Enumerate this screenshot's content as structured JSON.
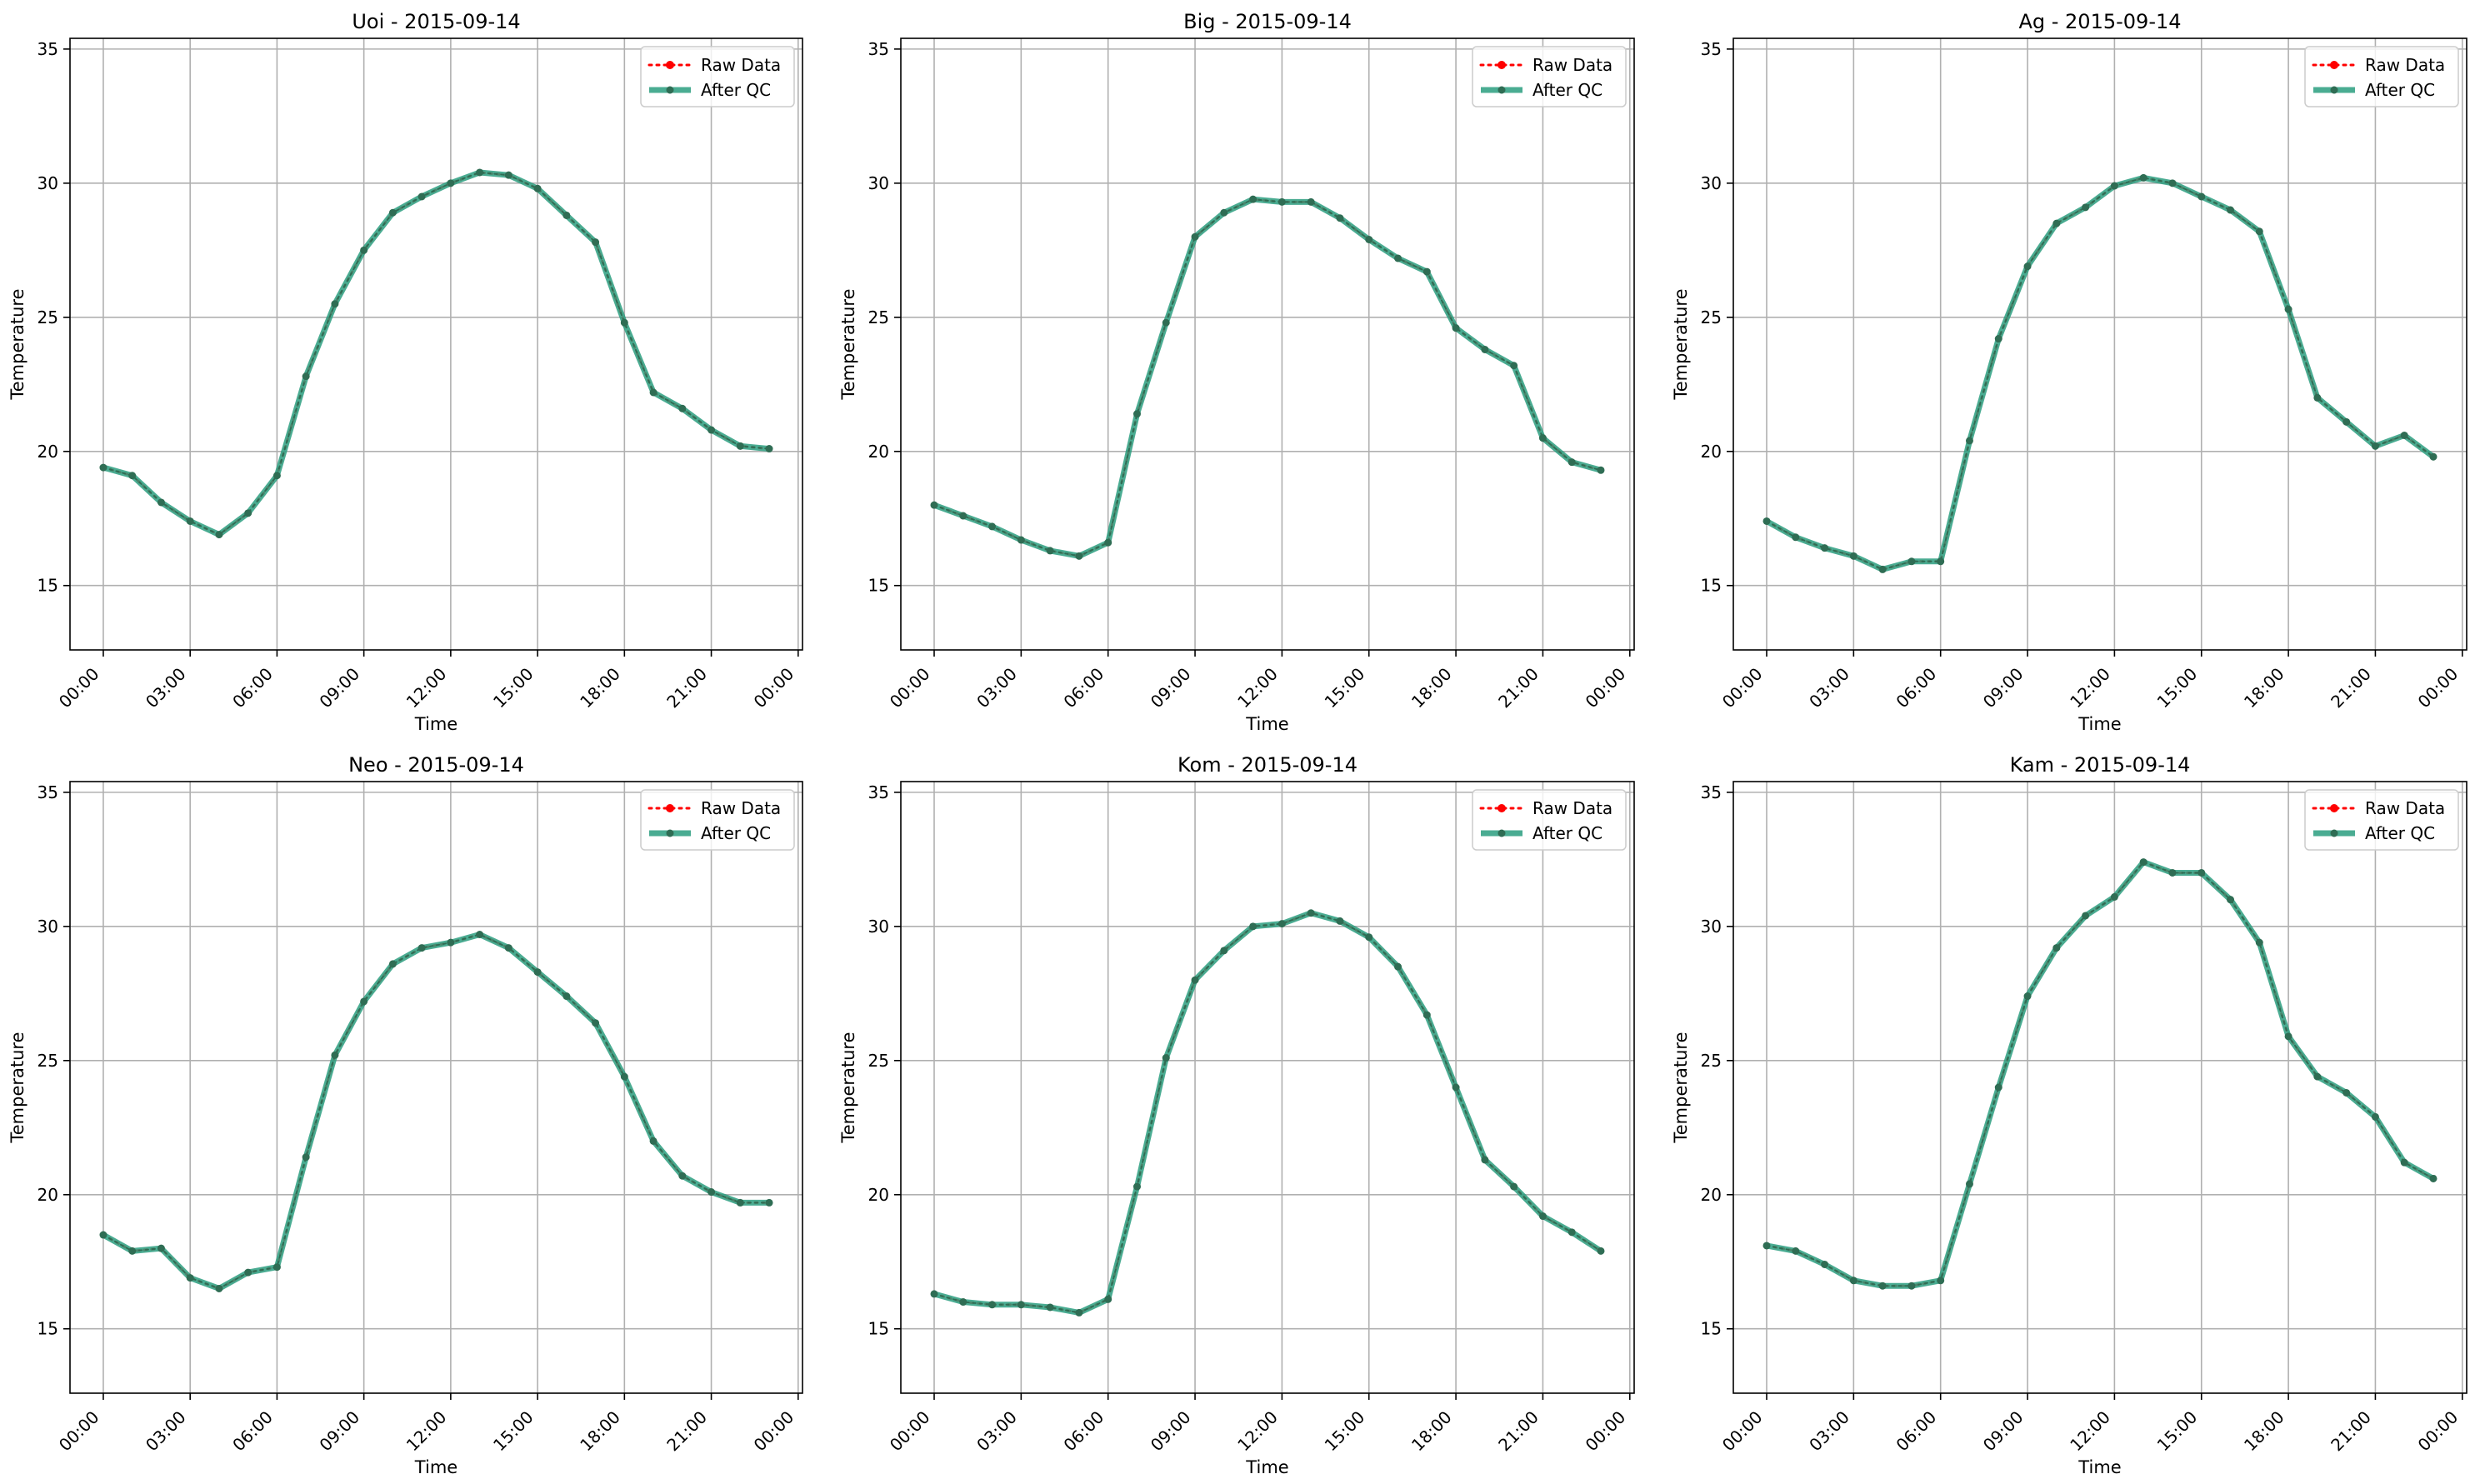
{
  "chart_data": [
    {
      "type": "line",
      "title": "Uoi - 2015-09-14",
      "xlabel": "Time",
      "ylabel": "Temperature",
      "xlim": [
        -1.15,
        24.15
      ],
      "ylim": [
        12.6,
        35.4
      ],
      "x_ticks": [
        "00:00",
        "03:00",
        "06:00",
        "09:00",
        "12:00",
        "15:00",
        "18:00",
        "21:00",
        "00:00"
      ],
      "y_ticks": [
        15,
        20,
        25,
        30,
        35
      ],
      "grid": true,
      "legend": "top-right",
      "x": [
        0,
        1,
        2,
        3,
        4,
        5,
        6,
        7,
        8,
        9,
        10,
        11,
        12,
        13,
        14,
        15,
        16,
        17,
        18,
        19,
        20,
        21,
        22,
        23
      ],
      "series": [
        {
          "name": "Raw Data",
          "color": "#ff0000",
          "style": "dotted",
          "values": [
            19.4,
            19.1,
            18.1,
            17.4,
            16.9,
            17.7,
            19.1,
            22.8,
            25.5,
            27.5,
            28.9,
            29.5,
            30.0,
            30.4,
            30.3,
            29.8,
            28.8,
            27.8,
            24.8,
            22.2,
            21.6,
            20.8,
            20.2,
            20.1
          ]
        },
        {
          "name": "After QC",
          "color": "#2a9d7f",
          "style": "solid",
          "values": [
            19.4,
            19.1,
            18.1,
            17.4,
            16.9,
            17.7,
            19.1,
            22.8,
            25.5,
            27.5,
            28.9,
            29.5,
            30.0,
            30.4,
            30.3,
            29.8,
            28.8,
            27.8,
            24.8,
            22.2,
            21.6,
            20.8,
            20.2,
            20.1
          ]
        }
      ]
    },
    {
      "type": "line",
      "title": "Big - 2015-09-14",
      "xlabel": "Time",
      "ylabel": "Temperature",
      "xlim": [
        -1.15,
        24.15
      ],
      "ylim": [
        12.6,
        35.4
      ],
      "x_ticks": [
        "00:00",
        "03:00",
        "06:00",
        "09:00",
        "12:00",
        "15:00",
        "18:00",
        "21:00",
        "00:00"
      ],
      "y_ticks": [
        15,
        20,
        25,
        30,
        35
      ],
      "grid": true,
      "legend": "top-right",
      "x": [
        0,
        1,
        2,
        3,
        4,
        5,
        6,
        7,
        8,
        9,
        10,
        11,
        12,
        13,
        14,
        15,
        16,
        17,
        18,
        19,
        20,
        21,
        22,
        23
      ],
      "series": [
        {
          "name": "Raw Data",
          "color": "#ff0000",
          "style": "dotted",
          "values": [
            18.0,
            17.6,
            17.2,
            16.7,
            16.3,
            16.1,
            16.6,
            21.4,
            24.8,
            28.0,
            28.9,
            29.4,
            29.3,
            29.3,
            28.7,
            27.9,
            27.2,
            26.7,
            24.6,
            23.8,
            23.2,
            20.5,
            19.6,
            19.3
          ]
        },
        {
          "name": "After QC",
          "color": "#2a9d7f",
          "style": "solid",
          "values": [
            18.0,
            17.6,
            17.2,
            16.7,
            16.3,
            16.1,
            16.6,
            21.4,
            24.8,
            28.0,
            28.9,
            29.4,
            29.3,
            29.3,
            28.7,
            27.9,
            27.2,
            26.7,
            24.6,
            23.8,
            23.2,
            20.5,
            19.6,
            19.3
          ]
        }
      ]
    },
    {
      "type": "line",
      "title": "Ag - 2015-09-14",
      "xlabel": "Time",
      "ylabel": "Temperature",
      "xlim": [
        -1.15,
        24.15
      ],
      "ylim": [
        12.6,
        35.4
      ],
      "x_ticks": [
        "00:00",
        "03:00",
        "06:00",
        "09:00",
        "12:00",
        "15:00",
        "18:00",
        "21:00",
        "00:00"
      ],
      "y_ticks": [
        15,
        20,
        25,
        30,
        35
      ],
      "grid": true,
      "legend": "top-right",
      "x": [
        0,
        1,
        2,
        3,
        4,
        5,
        6,
        7,
        8,
        9,
        10,
        11,
        12,
        13,
        14,
        15,
        16,
        17,
        18,
        19,
        20,
        21,
        22,
        23
      ],
      "series": [
        {
          "name": "Raw Data",
          "color": "#ff0000",
          "style": "dotted",
          "values": [
            17.4,
            16.8,
            16.4,
            16.1,
            15.6,
            15.9,
            15.9,
            20.4,
            24.2,
            26.9,
            28.5,
            29.1,
            29.9,
            30.2,
            30.0,
            29.5,
            29.0,
            28.2,
            25.3,
            22.0,
            21.1,
            20.2,
            20.6,
            19.8
          ]
        },
        {
          "name": "After QC",
          "color": "#2a9d7f",
          "style": "solid",
          "values": [
            17.4,
            16.8,
            16.4,
            16.1,
            15.6,
            15.9,
            15.9,
            20.4,
            24.2,
            26.9,
            28.5,
            29.1,
            29.9,
            30.2,
            30.0,
            29.5,
            29.0,
            28.2,
            25.3,
            22.0,
            21.1,
            20.2,
            20.6,
            19.8
          ]
        }
      ]
    },
    {
      "type": "line",
      "title": "Neo - 2015-09-14",
      "xlabel": "Time",
      "ylabel": "Temperature",
      "xlim": [
        -1.15,
        24.15
      ],
      "ylim": [
        12.6,
        35.4
      ],
      "x_ticks": [
        "00:00",
        "03:00",
        "06:00",
        "09:00",
        "12:00",
        "15:00",
        "18:00",
        "21:00",
        "00:00"
      ],
      "y_ticks": [
        15,
        20,
        25,
        30,
        35
      ],
      "grid": true,
      "legend": "top-right",
      "x": [
        0,
        1,
        2,
        3,
        4,
        5,
        6,
        7,
        8,
        9,
        10,
        11,
        12,
        13,
        14,
        15,
        16,
        17,
        18,
        19,
        20,
        21,
        22,
        23
      ],
      "series": [
        {
          "name": "Raw Data",
          "color": "#ff0000",
          "style": "dotted",
          "values": [
            18.5,
            17.9,
            18.0,
            16.9,
            16.5,
            17.1,
            17.3,
            21.4,
            25.2,
            27.2,
            28.6,
            29.2,
            29.4,
            29.7,
            29.2,
            28.3,
            27.4,
            26.4,
            24.4,
            22.0,
            20.7,
            20.1,
            19.7,
            19.7
          ]
        },
        {
          "name": "After QC",
          "color": "#2a9d7f",
          "style": "solid",
          "values": [
            18.5,
            17.9,
            18.0,
            16.9,
            16.5,
            17.1,
            17.3,
            21.4,
            25.2,
            27.2,
            28.6,
            29.2,
            29.4,
            29.7,
            29.2,
            28.3,
            27.4,
            26.4,
            24.4,
            22.0,
            20.7,
            20.1,
            19.7,
            19.7
          ]
        }
      ]
    },
    {
      "type": "line",
      "title": "Kom - 2015-09-14",
      "xlabel": "Time",
      "ylabel": "Temperature",
      "xlim": [
        -1.15,
        24.15
      ],
      "ylim": [
        12.6,
        35.4
      ],
      "x_ticks": [
        "00:00",
        "03:00",
        "06:00",
        "09:00",
        "12:00",
        "15:00",
        "18:00",
        "21:00",
        "00:00"
      ],
      "y_ticks": [
        15,
        20,
        25,
        30,
        35
      ],
      "grid": true,
      "legend": "top-right",
      "x": [
        0,
        1,
        2,
        3,
        4,
        5,
        6,
        7,
        8,
        9,
        10,
        11,
        12,
        13,
        14,
        15,
        16,
        17,
        18,
        19,
        20,
        21,
        22,
        23
      ],
      "series": [
        {
          "name": "Raw Data",
          "color": "#ff0000",
          "style": "dotted",
          "values": [
            16.3,
            16.0,
            15.9,
            15.9,
            15.8,
            15.6,
            16.1,
            20.3,
            25.1,
            28.0,
            29.1,
            30.0,
            30.1,
            30.5,
            30.2,
            29.6,
            28.5,
            26.7,
            24.0,
            21.3,
            20.3,
            19.2,
            18.6,
            17.9
          ]
        },
        {
          "name": "After QC",
          "color": "#2a9d7f",
          "style": "solid",
          "values": [
            16.3,
            16.0,
            15.9,
            15.9,
            15.8,
            15.6,
            16.1,
            20.3,
            25.1,
            28.0,
            29.1,
            30.0,
            30.1,
            30.5,
            30.2,
            29.6,
            28.5,
            26.7,
            24.0,
            21.3,
            20.3,
            19.2,
            18.6,
            17.9
          ]
        }
      ]
    },
    {
      "type": "line",
      "title": "Kam - 2015-09-14",
      "xlabel": "Time",
      "ylabel": "Temperature",
      "xlim": [
        -1.15,
        24.15
      ],
      "ylim": [
        12.6,
        35.4
      ],
      "x_ticks": [
        "00:00",
        "03:00",
        "06:00",
        "09:00",
        "12:00",
        "15:00",
        "18:00",
        "21:00",
        "00:00"
      ],
      "y_ticks": [
        15,
        20,
        25,
        30,
        35
      ],
      "grid": true,
      "legend": "top-right",
      "x": [
        0,
        1,
        2,
        3,
        4,
        5,
        6,
        7,
        8,
        9,
        10,
        11,
        12,
        13,
        14,
        15,
        16,
        17,
        18,
        19,
        20,
        21,
        22,
        23
      ],
      "series": [
        {
          "name": "Raw Data",
          "color": "#ff0000",
          "style": "dotted",
          "values": [
            18.1,
            17.9,
            17.4,
            16.8,
            16.6,
            16.6,
            16.8,
            20.4,
            24.0,
            27.4,
            29.2,
            30.4,
            31.1,
            32.4,
            32.0,
            32.0,
            31.0,
            29.4,
            25.9,
            24.4,
            23.8,
            22.9,
            21.2,
            20.6
          ]
        },
        {
          "name": "After QC",
          "color": "#2a9d7f",
          "style": "solid",
          "values": [
            18.1,
            17.9,
            17.4,
            16.8,
            16.6,
            16.6,
            16.8,
            20.4,
            24.0,
            27.4,
            29.2,
            30.4,
            31.1,
            32.4,
            32.0,
            32.0,
            31.0,
            29.4,
            25.9,
            24.4,
            23.8,
            22.9,
            21.2,
            20.6
          ]
        }
      ]
    }
  ]
}
